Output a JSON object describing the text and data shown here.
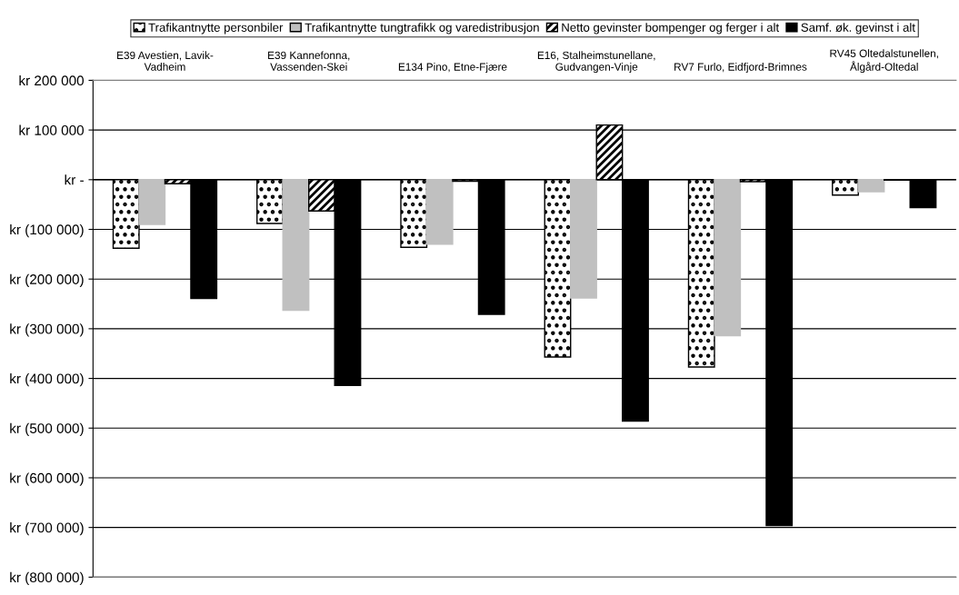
{
  "chart_data": {
    "type": "bar",
    "categories": [
      "E39 Avestien, Lavik-\nVadheim",
      "E39 Kannefonna,\nVassenden-Skei",
      "E134 Pino, Etne-Fjære",
      "E16, Stalheimstunellane,\nGudvangen-Vinje",
      "RV7 Furlo, Eidfjord-Brimnes",
      "RV45 Oltedalstunellen,\nÅlgård-Oltedal"
    ],
    "series": [
      {
        "name": "Trafikantnytte personbiler",
        "color": "#000000",
        "values": [
          -138000,
          -88000,
          -136000,
          -357000,
          -377000,
          -31000
        ]
      },
      {
        "name": "Trafikantnytte tungtrafikk og varedistribusjon",
        "color": "#c0c0c0",
        "values": [
          -90000,
          -263000,
          -130000,
          -238000,
          -314000,
          -24000
        ]
      },
      {
        "name": "Netto gevinster bompenger og ferger i alt",
        "color": "#000000",
        "values": [
          -8000,
          -63000,
          -3000,
          110000,
          -4000,
          -1000
        ]
      },
      {
        "name": "Samf. øk. gevinst i alt",
        "color": "#000000",
        "values": [
          -239000,
          -414000,
          -271000,
          -486000,
          -696000,
          -56000
        ]
      }
    ],
    "ylim": [
      -800000,
      200000
    ],
    "yticks": [
      {
        "value": 200000,
        "label": "kr 200 000"
      },
      {
        "value": 100000,
        "label": "kr 100 000"
      },
      {
        "value": 0,
        "label": "kr -"
      },
      {
        "value": -100000,
        "label": "kr (100 000)"
      },
      {
        "value": -200000,
        "label": "kr (200 000)"
      },
      {
        "value": -300000,
        "label": "kr (300 000)"
      },
      {
        "value": -400000,
        "label": "kr (400 000)"
      },
      {
        "value": -500000,
        "label": "kr (500 000)"
      },
      {
        "value": -600000,
        "label": "kr (600 000)"
      },
      {
        "value": -700000,
        "label": "kr (700 000)"
      },
      {
        "value": -800000,
        "label": "kr (800 000)"
      }
    ],
    "grid": "y",
    "legend": "top"
  }
}
